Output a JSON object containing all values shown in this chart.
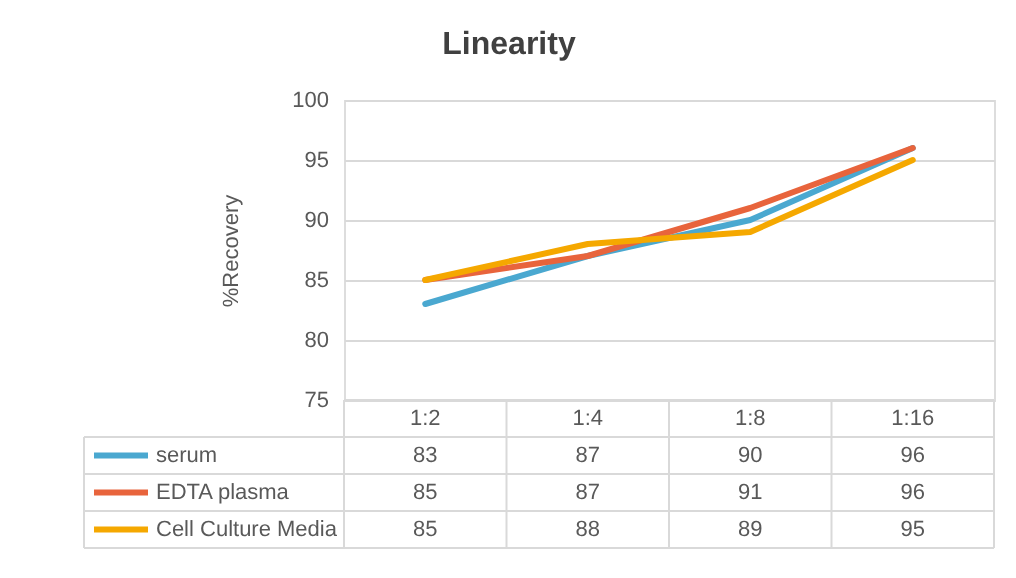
{
  "chart_data": {
    "type": "line",
    "title": "Linearity",
    "ylabel": "%Recovery",
    "categories": [
      "1:2",
      "1:4",
      "1:8",
      "1:16"
    ],
    "series": [
      {
        "name": "serum",
        "color": "#4aa8d0",
        "values": [
          83,
          87,
          90,
          96
        ]
      },
      {
        "name": "EDTA plasma",
        "color": "#e8643c",
        "values": [
          85,
          87,
          91,
          96
        ]
      },
      {
        "name": "Cell Culture Media",
        "color": "#f5a800",
        "values": [
          85,
          88,
          89,
          95
        ]
      }
    ],
    "ylim": [
      75,
      100
    ],
    "yticks": [
      75,
      80,
      85,
      90,
      95,
      100
    ],
    "grid": "y",
    "legend": "bottom",
    "data_labels": true
  }
}
